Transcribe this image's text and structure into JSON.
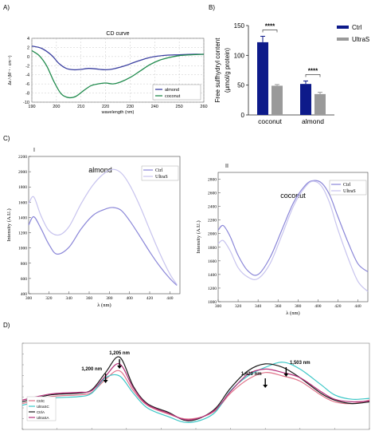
{
  "panel_labels": {
    "a": "A)",
    "b": "B)",
    "c": "C)",
    "c1": "I",
    "c2": "II",
    "d": "D)"
  },
  "colors": {
    "almond_cd": "#3a3fa0",
    "coconut_cd": "#1f8a4c",
    "ctrl_bar": "#0d1a8a",
    "ultras_bar": "#9a9a9a",
    "ctrl_line": "#8a86d8",
    "ultras_line": "#c7c3ee",
    "nir": [
      "#e0748a",
      "#3cc7c7",
      "#1a1a1a",
      "#b5307a"
    ]
  },
  "chart_data": [
    {
      "id": "A",
      "type": "line",
      "title": "CD curve",
      "xlabel": "wavelength (nm)",
      "ylabel": "Δε / (M⁻¹ · cm⁻¹)",
      "xlim": [
        190,
        260
      ],
      "ylim": [
        -10,
        4
      ],
      "xticks": [
        190,
        200,
        210,
        220,
        230,
        240,
        250,
        260
      ],
      "yticks": [
        -10,
        -8,
        -6,
        -4,
        -2,
        0,
        2,
        4
      ],
      "grid": true,
      "legend_position": "bottom-right",
      "series": [
        {
          "name": "almond",
          "x": [
            190,
            194,
            198,
            201,
            204,
            207,
            210,
            213,
            216,
            220,
            224,
            228,
            232,
            236,
            240,
            245,
            250,
            255,
            260
          ],
          "y": [
            2.3,
            1.8,
            0.3,
            -1.5,
            -2.6,
            -2.9,
            -2.8,
            -2.6,
            -2.7,
            -2.9,
            -2.6,
            -2.0,
            -1.2,
            -0.5,
            0.0,
            0.3,
            0.4,
            0.5,
            0.5
          ]
        },
        {
          "name": "coconut",
          "x": [
            190,
            193,
            196,
            199,
            202,
            205,
            208,
            211,
            214,
            217,
            220,
            223,
            226,
            230,
            234,
            238,
            242,
            246,
            250,
            255,
            260
          ],
          "y": [
            1.3,
            0.2,
            -2.0,
            -5.5,
            -8.2,
            -9.0,
            -8.7,
            -7.5,
            -6.4,
            -6.0,
            -5.8,
            -6.0,
            -5.6,
            -4.6,
            -3.2,
            -1.8,
            -0.8,
            -0.2,
            0.2,
            0.4,
            0.5
          ]
        }
      ]
    },
    {
      "id": "B",
      "type": "bar",
      "ylabel": "Free sulfhydryl content (μmol/g protein)",
      "categories": [
        "coconut",
        "almond"
      ],
      "ylim": [
        0,
        150
      ],
      "yticks": [
        0,
        50,
        100,
        150
      ],
      "legend_position": "top-right",
      "series": [
        {
          "name": "Ctrl",
          "values": [
            122,
            52
          ],
          "errors": [
            10,
            5
          ]
        },
        {
          "name": "UltraS",
          "values": [
            49,
            35
          ],
          "errors": [
            2,
            3
          ]
        }
      ],
      "annotations": [
        "****",
        "****"
      ]
    },
    {
      "id": "C-I",
      "type": "line",
      "title": "almond",
      "xlabel": "λ (nm)",
      "ylabel": "Intensity (A.U.)",
      "xlim": [
        300,
        450
      ],
      "ylim": [
        400,
        2200
      ],
      "xticks": [
        300,
        320,
        340,
        360,
        380,
        400,
        420,
        440
      ],
      "yticks": [
        400,
        600,
        800,
        1000,
        1200,
        1400,
        1600,
        1800,
        2000,
        2200
      ],
      "legend_position": "top-right",
      "series": [
        {
          "name": "Ctrl",
          "x": [
            300,
            305,
            312,
            320,
            328,
            340,
            352,
            364,
            376,
            384,
            392,
            400,
            410,
            420,
            430,
            440,
            447
          ],
          "y": [
            1300,
            1410,
            1260,
            1050,
            920,
            1010,
            1250,
            1430,
            1510,
            1530,
            1490,
            1360,
            1160,
            950,
            760,
            600,
            510
          ]
        },
        {
          "name": "UltraS",
          "x": [
            300,
            305,
            312,
            320,
            330,
            340,
            352,
            364,
            376,
            384,
            392,
            400,
            410,
            420,
            430,
            440,
            447
          ],
          "y": [
            1580,
            1670,
            1430,
            1230,
            1170,
            1280,
            1580,
            1830,
            1990,
            2030,
            1980,
            1830,
            1560,
            1240,
            930,
            660,
            520
          ]
        }
      ]
    },
    {
      "id": "C-II",
      "type": "line",
      "title": "coconut",
      "xlabel": "λ (nm)",
      "ylabel": "Intensity (A.U.)",
      "xlim": [
        300,
        450
      ],
      "ylim": [
        1000,
        2900
      ],
      "xticks": [
        300,
        320,
        340,
        360,
        380,
        400,
        420,
        440
      ],
      "yticks": [
        1000,
        1200,
        1400,
        1600,
        1800,
        2000,
        2200,
        2400,
        2600,
        2800
      ],
      "legend_position": "top-right",
      "series": [
        {
          "name": "Ctrl",
          "x": [
            300,
            305,
            312,
            320,
            330,
            340,
            352,
            364,
            376,
            388,
            396,
            404,
            412,
            420,
            430,
            440,
            450
          ],
          "y": [
            2050,
            2120,
            1960,
            1680,
            1450,
            1400,
            1650,
            2060,
            2470,
            2720,
            2780,
            2740,
            2560,
            2250,
            1880,
            1560,
            1440
          ]
        },
        {
          "name": "UltraS",
          "x": [
            300,
            305,
            312,
            320,
            330,
            340,
            352,
            364,
            376,
            388,
            396,
            404,
            412,
            420,
            430,
            440,
            450
          ],
          "y": [
            1850,
            1900,
            1750,
            1500,
            1360,
            1340,
            1560,
            1980,
            2420,
            2700,
            2770,
            2690,
            2440,
            2060,
            1650,
            1300,
            1150
          ]
        }
      ]
    },
    {
      "id": "D",
      "type": "line",
      "legend_position": "bottom-left",
      "series": [
        {
          "name": "CtrlC",
          "x": [
            0,
            0.08,
            0.16,
            0.2,
            0.24,
            0.28,
            0.32,
            0.36,
            0.42,
            0.48,
            0.55,
            0.6,
            0.65,
            0.7,
            0.75,
            0.8,
            0.86,
            0.9,
            0.95,
            1.0
          ],
          "y": [
            0.3,
            0.38,
            0.4,
            0.43,
            0.58,
            0.68,
            0.45,
            0.28,
            0.18,
            0.12,
            0.2,
            0.42,
            0.58,
            0.66,
            0.62,
            0.56,
            0.4,
            0.32,
            0.3,
            0.34
          ]
        },
        {
          "name": "UltraSC",
          "x": [
            0,
            0.08,
            0.16,
            0.2,
            0.24,
            0.28,
            0.32,
            0.36,
            0.42,
            0.48,
            0.55,
            0.6,
            0.65,
            0.7,
            0.75,
            0.8,
            0.86,
            0.9,
            0.95,
            1.0
          ],
          "y": [
            0.28,
            0.36,
            0.38,
            0.42,
            0.6,
            0.62,
            0.42,
            0.25,
            0.15,
            0.08,
            0.18,
            0.45,
            0.62,
            0.72,
            0.78,
            0.7,
            0.52,
            0.4,
            0.35,
            0.36
          ]
        },
        {
          "name": "CtrlA",
          "x": [
            0,
            0.08,
            0.16,
            0.2,
            0.24,
            0.28,
            0.32,
            0.36,
            0.42,
            0.48,
            0.55,
            0.6,
            0.65,
            0.7,
            0.75,
            0.8,
            0.86,
            0.9,
            0.95,
            1.0
          ],
          "y": [
            0.32,
            0.4,
            0.42,
            0.46,
            0.66,
            0.84,
            0.5,
            0.3,
            0.2,
            0.1,
            0.22,
            0.48,
            0.68,
            0.76,
            0.72,
            0.6,
            0.42,
            0.34,
            0.3,
            0.32
          ]
        },
        {
          "name": "UltraSA",
          "x": [
            0,
            0.08,
            0.16,
            0.2,
            0.24,
            0.28,
            0.32,
            0.36,
            0.42,
            0.48,
            0.55,
            0.6,
            0.65,
            0.7,
            0.75,
            0.8,
            0.86,
            0.9,
            0.95,
            1.0
          ],
          "y": [
            0.34,
            0.41,
            0.43,
            0.45,
            0.62,
            0.76,
            0.48,
            0.29,
            0.19,
            0.11,
            0.21,
            0.44,
            0.64,
            0.7,
            0.66,
            0.6,
            0.44,
            0.35,
            0.32,
            0.33
          ]
        }
      ],
      "annotations": [
        {
          "text": "1,205 nm",
          "at": 0.28
        },
        {
          "text": "1,200 nm",
          "at": 0.24
        },
        {
          "text": "1,420 nm",
          "at": 0.7
        },
        {
          "text": "1,503 nm",
          "at": 0.76
        }
      ]
    }
  ]
}
